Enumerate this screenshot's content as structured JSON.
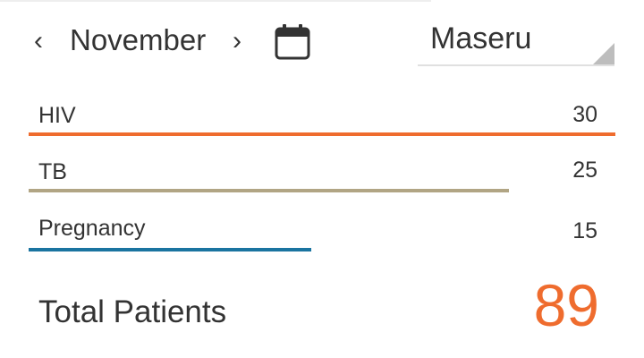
{
  "header": {
    "prev_icon": "chevron-left-icon",
    "prev_glyph": "‹",
    "month": "November",
    "next_icon": "chevron-right-icon",
    "next_glyph": "›",
    "calendar_icon": "calendar-icon"
  },
  "location": {
    "selected": "Maseru",
    "dropdown_icon": "dropdown-corner-icon"
  },
  "stats": [
    {
      "label": "HIV",
      "value": "30",
      "fill_fraction": 1.0,
      "color": "#ef6c2e"
    },
    {
      "label": "TB",
      "value": "25",
      "fill_fraction": 0.818,
      "color": "#b1a584"
    },
    {
      "label": "Pregnancy",
      "value": "15",
      "fill_fraction": 0.482,
      "color": "#1a74a0"
    }
  ],
  "total": {
    "label": "Total Patients",
    "value": "89",
    "color": "#ef6c2e"
  }
}
